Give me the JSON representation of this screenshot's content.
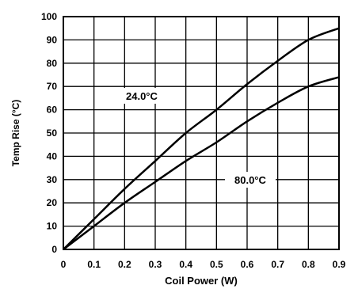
{
  "chart_data": {
    "type": "line",
    "title": "",
    "xlabel": "Coil Power (W)",
    "ylabel": "Temp Rise (°C)",
    "xlim": [
      0,
      0.9
    ],
    "ylim": [
      0,
      100
    ],
    "x_ticks": [
      "0",
      "0.1",
      "0.2",
      "0.3",
      "0.4",
      "0.5",
      "0.6",
      "0.7",
      "0.8",
      "0.9"
    ],
    "y_ticks": [
      "0",
      "10",
      "20",
      "30",
      "40",
      "50",
      "60",
      "70",
      "80",
      "90",
      "100"
    ],
    "grid": true,
    "series": [
      {
        "name": "24.0°C",
        "x": [
          0,
          0.1,
          0.2,
          0.3,
          0.4,
          0.5,
          0.6,
          0.7,
          0.8,
          0.9
        ],
        "y": [
          0,
          13,
          26,
          38,
          50,
          60,
          71,
          81,
          90,
          95
        ]
      },
      {
        "name": "80.0°C",
        "x": [
          0,
          0.1,
          0.2,
          0.3,
          0.4,
          0.5,
          0.6,
          0.7,
          0.8,
          0.9
        ],
        "y": [
          0,
          10,
          20,
          29,
          38,
          46,
          55,
          63,
          70,
          74
        ]
      }
    ],
    "line_color": "#000000"
  }
}
